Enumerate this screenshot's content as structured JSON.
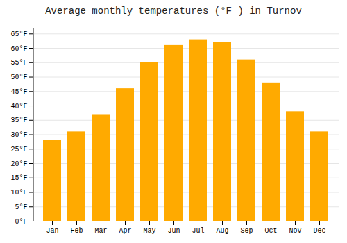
{
  "chart_data": {
    "type": "bar",
    "title": "Average monthly temperatures (°F ) in Turnov",
    "categories": [
      "Jan",
      "Feb",
      "Mar",
      "Apr",
      "May",
      "Jun",
      "Jul",
      "Aug",
      "Sep",
      "Oct",
      "Nov",
      "Dec"
    ],
    "values": [
      28,
      31,
      37,
      46,
      55,
      61,
      63,
      62,
      56,
      48,
      38,
      31
    ],
    "color": "#FFAA00",
    "ylim": [
      0,
      67
    ],
    "yticks": [
      {
        "value": 0,
        "label": "0°F"
      },
      {
        "value": 5,
        "label": "5°F"
      },
      {
        "value": 10,
        "label": "10°F"
      },
      {
        "value": 15,
        "label": "15°F"
      },
      {
        "value": 20,
        "label": "20°F"
      },
      {
        "value": 25,
        "label": "25°F"
      },
      {
        "value": 30,
        "label": "30°F"
      },
      {
        "value": 35,
        "label": "35°F"
      },
      {
        "value": 40,
        "label": "40°F"
      },
      {
        "value": 45,
        "label": "45°F"
      },
      {
        "value": 50,
        "label": "50°F"
      },
      {
        "value": 55,
        "label": "55°F"
      },
      {
        "value": 60,
        "label": "60°F"
      },
      {
        "value": 65,
        "label": "65°F"
      }
    ],
    "grid": true
  }
}
